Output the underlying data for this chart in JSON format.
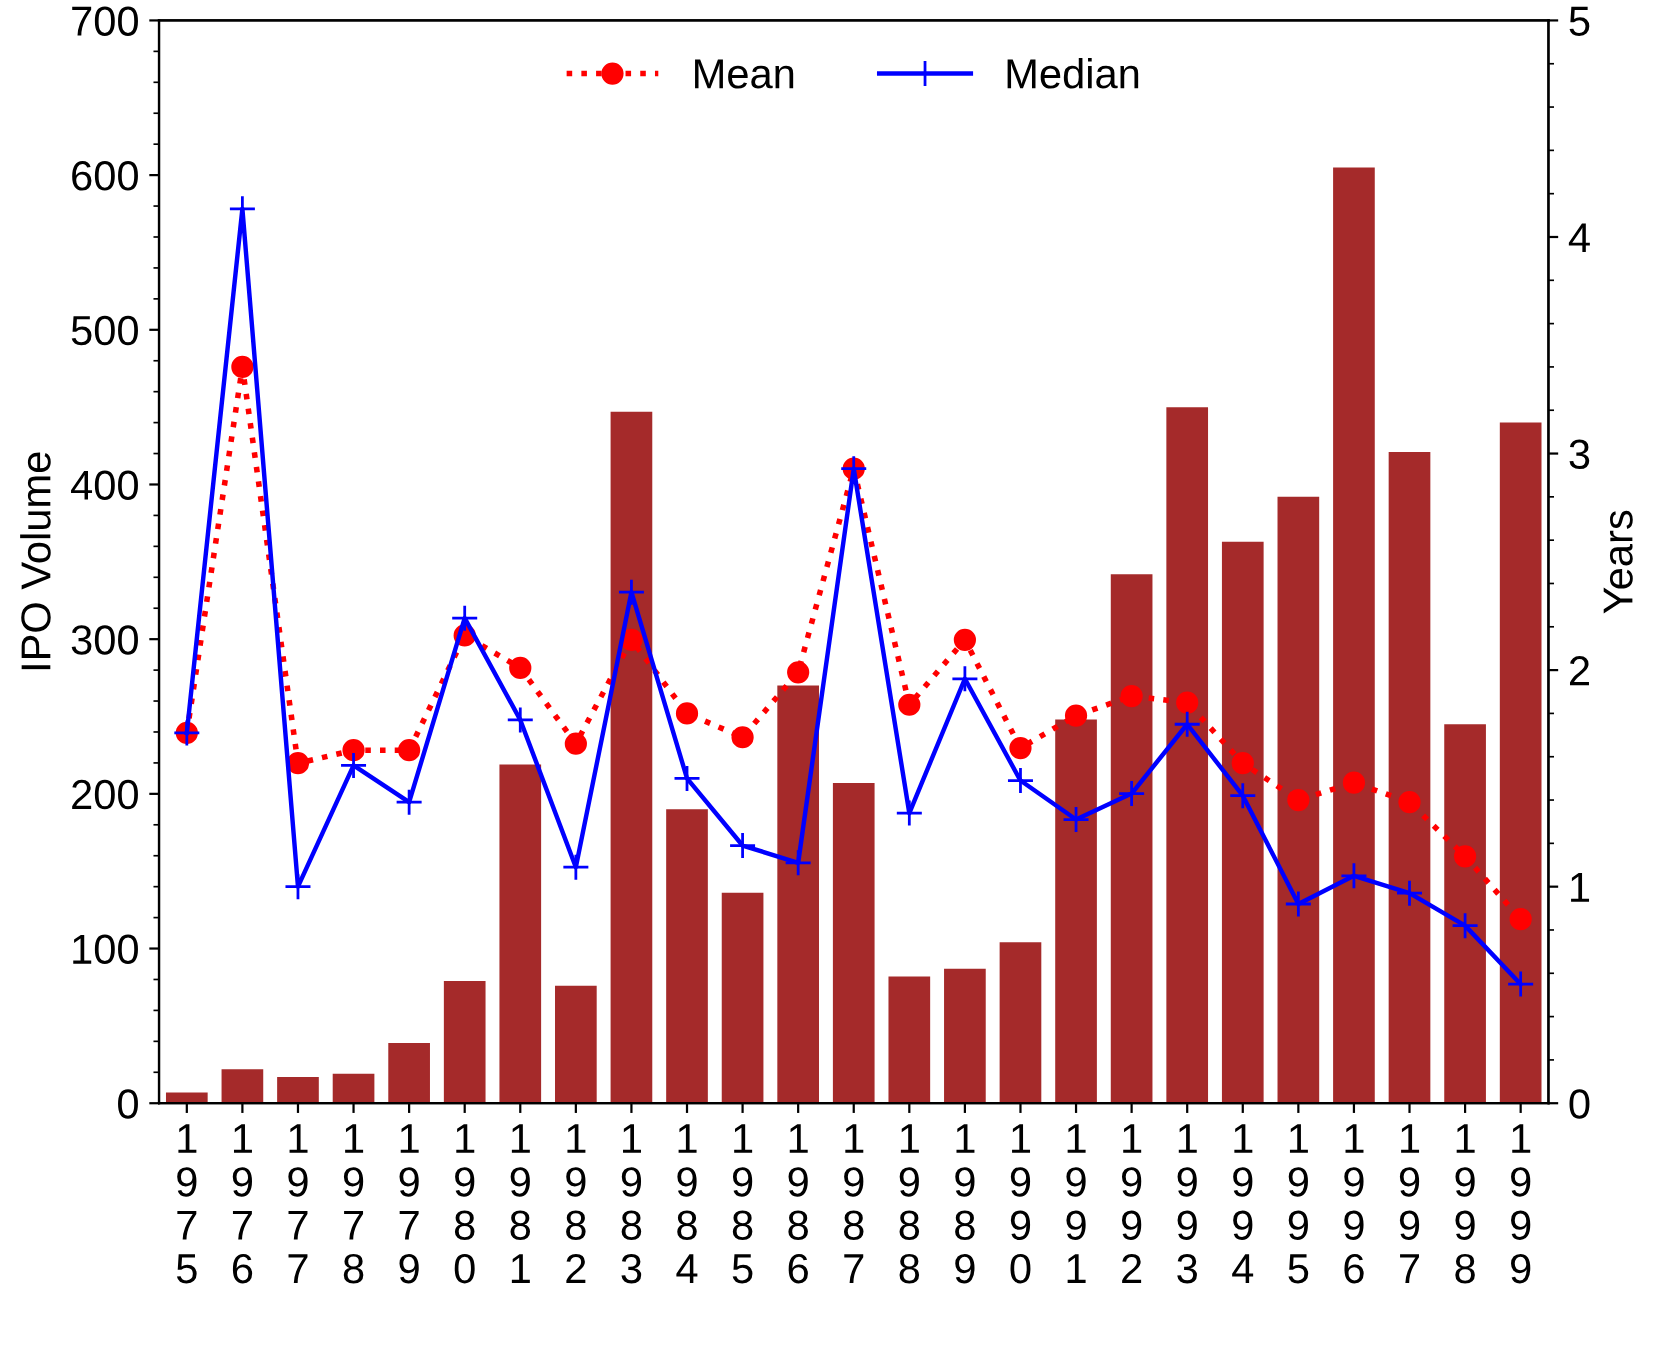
{
  "chart_data": {
    "type": "bar",
    "ylabel": "IPO Volume",
    "y2label": "Years",
    "categories": [
      "1975",
      "1976",
      "1977",
      "1978",
      "1979",
      "1980",
      "1981",
      "1982",
      "1983",
      "1984",
      "1985",
      "1986",
      "1987",
      "1988",
      "1989",
      "1990",
      "1991",
      "1992",
      "1993",
      "1994",
      "1995",
      "1996",
      "1997",
      "1998",
      "1999"
    ],
    "series": [
      {
        "color": "#a52a2a",
        "values": [
          7,
          22,
          17,
          19,
          39,
          79,
          219,
          76,
          447,
          190,
          136,
          270,
          207,
          82,
          87,
          104,
          248,
          342,
          450,
          363,
          392,
          605,
          421,
          245,
          440
        ]
      },
      {
        "type": "line",
        "name": "Mean",
        "axis": "y2",
        "color": "#ff0000",
        "marker": "circle",
        "line_style": "dotted",
        "values": [
          1.71,
          3.4,
          1.57,
          1.63,
          1.63,
          2.16,
          2.01,
          1.66,
          2.14,
          1.8,
          1.69,
          1.99,
          2.93,
          1.84,
          2.14,
          1.64,
          1.79,
          1.88,
          1.85,
          1.57,
          1.4,
          1.48,
          1.39,
          1.14,
          0.85
        ]
      },
      {
        "type": "line",
        "name": "Median",
        "axis": "y2",
        "color": "#0000ff",
        "marker": "cross",
        "line_style": "solid",
        "values": [
          1.71,
          4.13,
          1.0,
          1.56,
          1.39,
          2.24,
          1.77,
          1.09,
          2.36,
          1.5,
          1.19,
          1.11,
          2.93,
          1.34,
          1.96,
          1.49,
          1.31,
          1.43,
          1.75,
          1.42,
          0.92,
          1.05,
          0.97,
          0.82,
          0.55
        ]
      }
    ],
    "ylim": [
      0,
      700
    ],
    "yticks": [
      0,
      100,
      200,
      300,
      400,
      500,
      600,
      700
    ],
    "y2lim": [
      0,
      5
    ],
    "y2ticks": [
      0,
      1,
      2,
      3,
      4,
      5
    ],
    "legend": "top",
    "grid": false
  }
}
